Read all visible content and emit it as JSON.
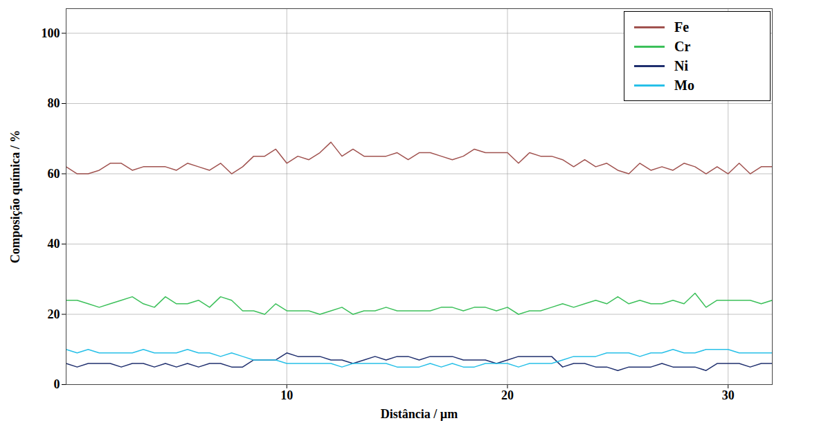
{
  "chart_data": {
    "type": "line",
    "x_label": "Distância / µm",
    "y_label": "Composição química / %",
    "xlim": [
      0,
      32
    ],
    "ylim": [
      0,
      107
    ],
    "xticks": [
      10,
      20,
      30
    ],
    "yticks": [
      0,
      20,
      40,
      60,
      80,
      100
    ],
    "grid": true,
    "legend": "top-right",
    "x": [
      0,
      0.5,
      1,
      1.5,
      2,
      2.5,
      3,
      3.5,
      4,
      4.5,
      5,
      5.5,
      6,
      6.5,
      7,
      7.5,
      8,
      8.5,
      9,
      9.5,
      10,
      10.5,
      11,
      11.5,
      12,
      12.5,
      13,
      13.5,
      14,
      14.5,
      15,
      15.5,
      16,
      16.5,
      17,
      17.5,
      18,
      18.5,
      19,
      19.5,
      20,
      20.5,
      21,
      21.5,
      22,
      22.5,
      23,
      23.5,
      24,
      24.5,
      25,
      25.5,
      26,
      26.5,
      27,
      27.5,
      28,
      28.5,
      29,
      29.5,
      30,
      30.5,
      31,
      31.5,
      32
    ],
    "series": [
      {
        "name": "Fe",
        "color": "#a0524f",
        "values": [
          62,
          60,
          60,
          61,
          63,
          63,
          61,
          62,
          62,
          62,
          61,
          63,
          62,
          61,
          63,
          60,
          62,
          65,
          65,
          67,
          63,
          65,
          64,
          66,
          69,
          65,
          67,
          65,
          65,
          65,
          66,
          64,
          66,
          66,
          65,
          64,
          65,
          67,
          66,
          66,
          66,
          63,
          66,
          65,
          65,
          64,
          62,
          64,
          62,
          63,
          61,
          60,
          63,
          61,
          62,
          61,
          63,
          62,
          60,
          62,
          60,
          63,
          60,
          62,
          62
        ]
      },
      {
        "name": "Cr",
        "color": "#3cc05a",
        "values": [
          24,
          24,
          23,
          22,
          23,
          24,
          25,
          23,
          22,
          25,
          23,
          23,
          24,
          22,
          25,
          24,
          21,
          21,
          20,
          23,
          21,
          21,
          21,
          20,
          21,
          22,
          20,
          21,
          21,
          22,
          21,
          21,
          21,
          21,
          22,
          22,
          21,
          22,
          22,
          21,
          22,
          20,
          21,
          21,
          22,
          23,
          22,
          23,
          24,
          23,
          25,
          23,
          24,
          23,
          23,
          24,
          23,
          26,
          22,
          24,
          24,
          24,
          24,
          23,
          24
        ]
      },
      {
        "name": "Ni",
        "color": "#1f2f6e",
        "values": [
          6,
          5,
          6,
          6,
          6,
          5,
          6,
          6,
          5,
          6,
          5,
          6,
          5,
          6,
          6,
          5,
          5,
          7,
          7,
          7,
          9,
          8,
          8,
          8,
          7,
          7,
          6,
          7,
          8,
          7,
          8,
          8,
          7,
          8,
          8,
          8,
          7,
          7,
          7,
          6,
          7,
          8,
          8,
          8,
          8,
          5,
          6,
          6,
          5,
          5,
          4,
          5,
          5,
          5,
          6,
          5,
          5,
          5,
          4,
          6,
          6,
          6,
          5,
          6,
          6
        ]
      },
      {
        "name": "Mo",
        "color": "#27c0e8",
        "values": [
          10,
          9,
          10,
          9,
          9,
          9,
          9,
          10,
          9,
          9,
          9,
          10,
          9,
          9,
          8,
          9,
          8,
          7,
          7,
          7,
          6,
          6,
          6,
          6,
          6,
          5,
          6,
          6,
          6,
          6,
          5,
          5,
          5,
          6,
          5,
          6,
          5,
          5,
          6,
          6,
          6,
          5,
          6,
          6,
          6,
          7,
          8,
          8,
          8,
          9,
          9,
          9,
          8,
          9,
          9,
          10,
          9,
          9,
          10,
          10,
          10,
          9,
          9,
          9,
          9
        ]
      }
    ]
  }
}
